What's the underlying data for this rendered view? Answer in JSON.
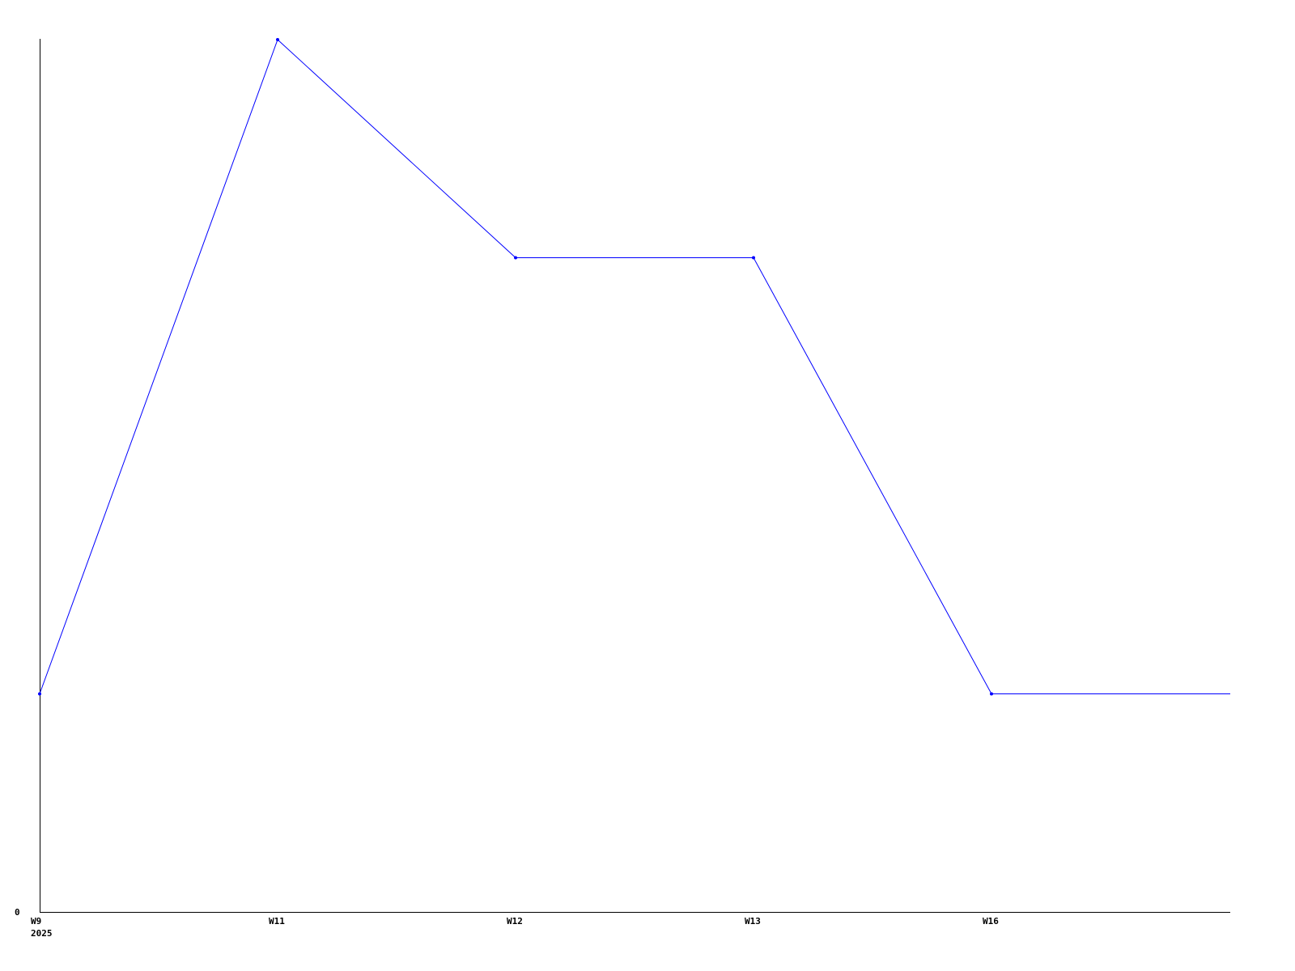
{
  "chart_data": {
    "type": "line",
    "categories": [
      "W9",
      "W11",
      "W12",
      "W13",
      "W16"
    ],
    "x_sublabel": "2025",
    "values": [
      1,
      4,
      3,
      3,
      1
    ],
    "ylim": [
      0,
      4
    ],
    "y_tick_labels": [
      "0"
    ],
    "title": "",
    "xlabel": "",
    "ylabel": "",
    "grid": false,
    "line_color": "#0000ff",
    "axis_color": "#000000"
  }
}
